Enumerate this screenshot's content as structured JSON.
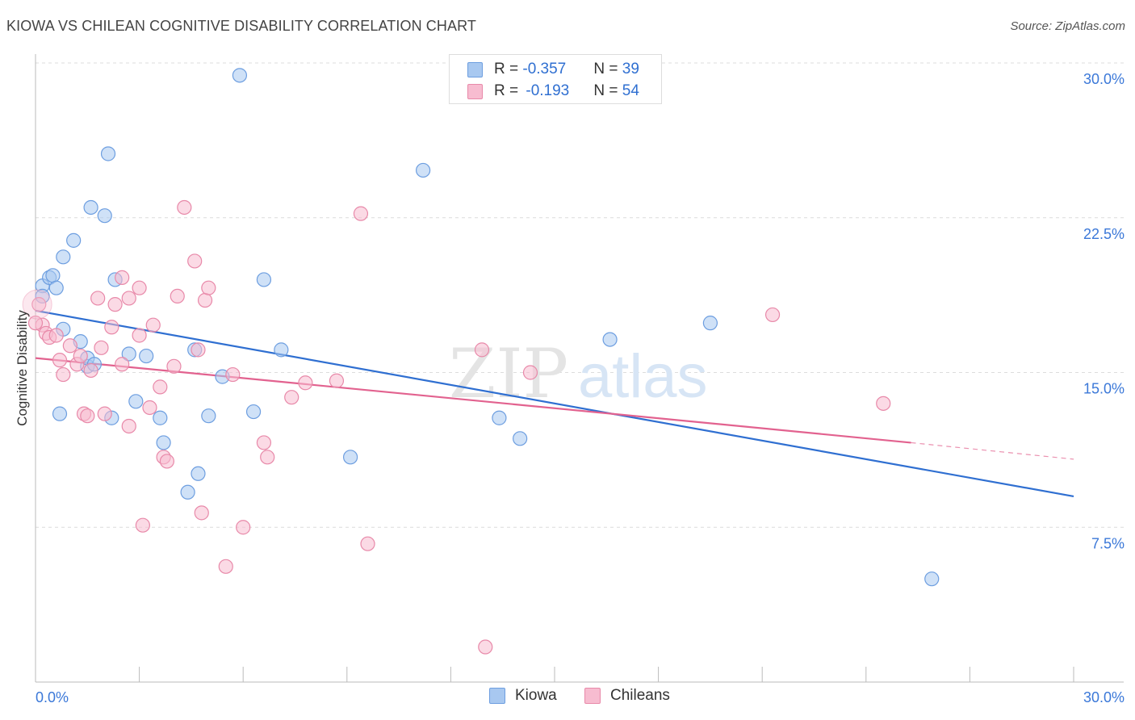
{
  "title": "KIOWA VS CHILEAN COGNITIVE DISABILITY CORRELATION CHART",
  "source": "Source: ZipAtlas.com",
  "legend": {
    "rows": [
      {
        "r_label": "R = ",
        "r_value": "-0.357",
        "n_label": "N = ",
        "n_value": "39",
        "color": "#a8c8f0",
        "border": "#6d9ee0"
      },
      {
        "r_label": "R = ",
        "r_value": "-0.193",
        "n_label": "N = ",
        "n_value": "54",
        "color": "#f7bcd0",
        "border": "#e889a9"
      }
    ]
  },
  "bottom_legend": [
    {
      "label": "Kiowa",
      "color": "#a8c8f0",
      "border": "#6d9ee0"
    },
    {
      "label": "Chileans",
      "color": "#f7bcd0",
      "border": "#e889a9"
    }
  ],
  "chart_data": {
    "type": "scatter",
    "title": "KIOWA VS CHILEAN COGNITIVE DISABILITY CORRELATION CHART",
    "xlabel": "",
    "ylabel": "Cognitive Disability",
    "xlim": [
      0,
      30
    ],
    "ylim": [
      0,
      30
    ],
    "x_tick_labels": [
      "0.0%",
      "30.0%"
    ],
    "y_ticks": [
      7.5,
      15.0,
      22.5,
      30.0
    ],
    "y_tick_labels": [
      "7.5%",
      "15.0%",
      "22.5%",
      "30.0%"
    ],
    "grid": true,
    "watermark": "ZIPatlas",
    "series": [
      {
        "name": "Kiowa",
        "color": "#6d9ee0",
        "fill": "#a8c8f0",
        "trend": {
          "x0": 0,
          "y0": 18.0,
          "x1": 30,
          "y1": 9.0,
          "color": "#2f6fd1"
        },
        "points": [
          [
            0.2,
            19.2
          ],
          [
            0.4,
            19.6
          ],
          [
            0.5,
            19.7
          ],
          [
            0.6,
            19.1
          ],
          [
            0.2,
            18.7
          ],
          [
            0.8,
            20.6
          ],
          [
            1.1,
            21.4
          ],
          [
            1.6,
            23.0
          ],
          [
            2.0,
            22.6
          ],
          [
            2.1,
            25.6
          ],
          [
            2.3,
            19.5
          ],
          [
            0.8,
            17.1
          ],
          [
            1.3,
            16.5
          ],
          [
            1.5,
            15.3
          ],
          [
            1.5,
            15.7
          ],
          [
            1.7,
            15.4
          ],
          [
            2.7,
            15.9
          ],
          [
            3.2,
            15.8
          ],
          [
            0.7,
            13.0
          ],
          [
            2.2,
            12.8
          ],
          [
            2.9,
            13.6
          ],
          [
            3.6,
            12.8
          ],
          [
            3.7,
            11.6
          ],
          [
            4.6,
            16.1
          ],
          [
            4.7,
            10.1
          ],
          [
            4.4,
            9.2
          ],
          [
            5.0,
            12.9
          ],
          [
            5.4,
            14.8
          ],
          [
            5.9,
            29.4
          ],
          [
            6.3,
            13.1
          ],
          [
            6.6,
            19.5
          ],
          [
            7.1,
            16.1
          ],
          [
            9.1,
            10.9
          ],
          [
            11.2,
            24.8
          ],
          [
            13.4,
            12.8
          ],
          [
            14.0,
            11.8
          ],
          [
            16.6,
            16.6
          ],
          [
            19.5,
            17.4
          ],
          [
            25.9,
            5.0
          ]
        ]
      },
      {
        "name": "Chileans",
        "color": "#e889a9",
        "fill": "#f7bcd0",
        "trend": {
          "x0": 0,
          "y0": 15.7,
          "x1": 25.3,
          "y1": 11.6,
          "x2": 30,
          "y2": 10.8,
          "color": "#e2628f"
        },
        "points": [
          [
            0.1,
            18.3
          ],
          [
            0.2,
            17.3
          ],
          [
            0.3,
            16.9
          ],
          [
            0.4,
            16.7
          ],
          [
            0.6,
            16.8
          ],
          [
            0.7,
            15.6
          ],
          [
            0.8,
            14.9
          ],
          [
            1.0,
            16.3
          ],
          [
            1.2,
            15.4
          ],
          [
            1.3,
            15.8
          ],
          [
            1.4,
            13.0
          ],
          [
            1.5,
            12.9
          ],
          [
            1.6,
            15.1
          ],
          [
            1.8,
            18.6
          ],
          [
            1.9,
            16.2
          ],
          [
            2.0,
            13.0
          ],
          [
            2.2,
            17.2
          ],
          [
            2.3,
            18.3
          ],
          [
            2.5,
            19.6
          ],
          [
            2.5,
            15.4
          ],
          [
            2.7,
            18.6
          ],
          [
            2.7,
            12.4
          ],
          [
            3.0,
            19.1
          ],
          [
            3.0,
            16.8
          ],
          [
            3.1,
            7.6
          ],
          [
            3.3,
            13.3
          ],
          [
            3.4,
            17.3
          ],
          [
            3.6,
            14.3
          ],
          [
            3.7,
            10.9
          ],
          [
            3.8,
            10.7
          ],
          [
            4.0,
            15.3
          ],
          [
            4.1,
            18.7
          ],
          [
            4.3,
            23.0
          ],
          [
            4.6,
            20.4
          ],
          [
            4.7,
            16.1
          ],
          [
            4.8,
            8.2
          ],
          [
            4.9,
            18.5
          ],
          [
            5.0,
            19.1
          ],
          [
            5.5,
            5.6
          ],
          [
            5.7,
            14.9
          ],
          [
            6.0,
            7.5
          ],
          [
            6.6,
            11.6
          ],
          [
            6.7,
            10.9
          ],
          [
            7.4,
            13.8
          ],
          [
            7.8,
            14.5
          ],
          [
            8.7,
            14.6
          ],
          [
            9.4,
            22.7
          ],
          [
            9.6,
            6.7
          ],
          [
            12.9,
            16.1
          ],
          [
            13.0,
            1.7
          ],
          [
            14.3,
            15.0
          ],
          [
            21.3,
            17.8
          ],
          [
            24.5,
            13.5
          ],
          [
            0.0,
            17.4
          ]
        ]
      }
    ]
  }
}
